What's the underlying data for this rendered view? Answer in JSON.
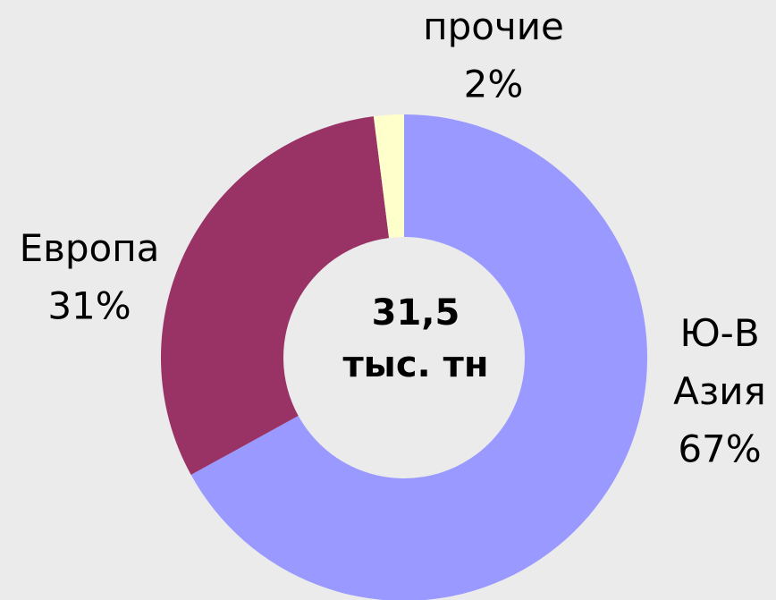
{
  "chart_data": {
    "type": "donut",
    "categories": [
      "Ю-В Азия",
      "Европа",
      "прочие"
    ],
    "values": [
      67,
      31,
      2
    ],
    "value_labels": [
      "67%",
      "31%",
      "2%"
    ],
    "colors": [
      "#9999ff",
      "#993366",
      "#ffffcc"
    ],
    "center_text": [
      "31,5",
      "тыс. тн"
    ]
  }
}
